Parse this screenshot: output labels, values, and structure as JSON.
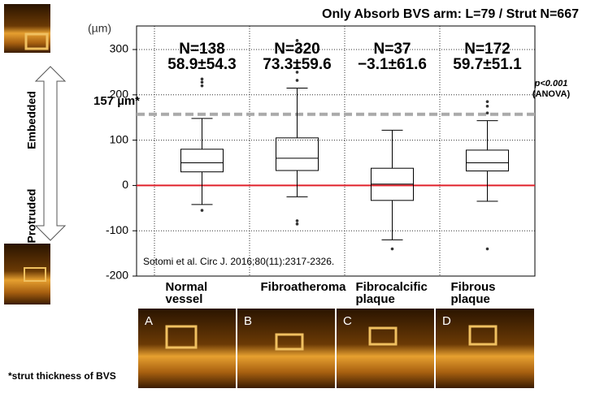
{
  "chart_data": {
    "type": "box",
    "title": "Only Absorb BVS arm: L=79 / Strut N=667",
    "y_unit": "(µm)",
    "categories": [
      "Normal vessel",
      "Fibroatheroma",
      "Fibrocalcific plaque",
      "Fibrous plaque"
    ],
    "n_labels": [
      "N=138",
      "N=320",
      "N=37",
      "N=172"
    ],
    "stat_labels": [
      "58.9±54.3",
      "73.3±59.6",
      "−3.1±61.6",
      "59.7±51.1"
    ],
    "boxes": [
      {
        "whisker_high": 148,
        "q3": 80,
        "median": 50,
        "q1": 30,
        "whisker_low": -42,
        "outliers": [
          -55,
          220,
          228,
          235
        ]
      },
      {
        "whisker_high": 215,
        "q3": 105,
        "median": 60,
        "q1": 33,
        "whisker_low": -25,
        "outliers": [
          -78,
          -85,
          232,
          250,
          262,
          300,
          320
        ]
      },
      {
        "whisker_high": 122,
        "q3": 38,
        "median": 3,
        "q1": -33,
        "whisker_low": -120,
        "outliers": [
          -140
        ]
      },
      {
        "whisker_high": 143,
        "q3": 78,
        "median": 50,
        "q1": 32,
        "whisker_low": -35,
        "outliers": [
          -140,
          160,
          175,
          185
        ]
      }
    ],
    "ylim": [
      -200,
      352
    ],
    "yticks": [
      -200,
      -100,
      0,
      100,
      200,
      300
    ],
    "grid": true,
    "reference_lines": [
      {
        "value": 0,
        "color": "#e0202a"
      },
      {
        "value": 157,
        "color": "#aaaaaa",
        "label": "157 µm*"
      }
    ],
    "p_value": "p<0.001",
    "test": "(ANOVA)",
    "direction_labels": [
      "Embedded",
      "Protruded"
    ],
    "citation": "Sotomi et al. Circ J. 2016;80(11):2317-2326.",
    "panel_letters": [
      "A",
      "B",
      "C",
      "D"
    ],
    "footnote": "*strut thickness of BVS"
  }
}
